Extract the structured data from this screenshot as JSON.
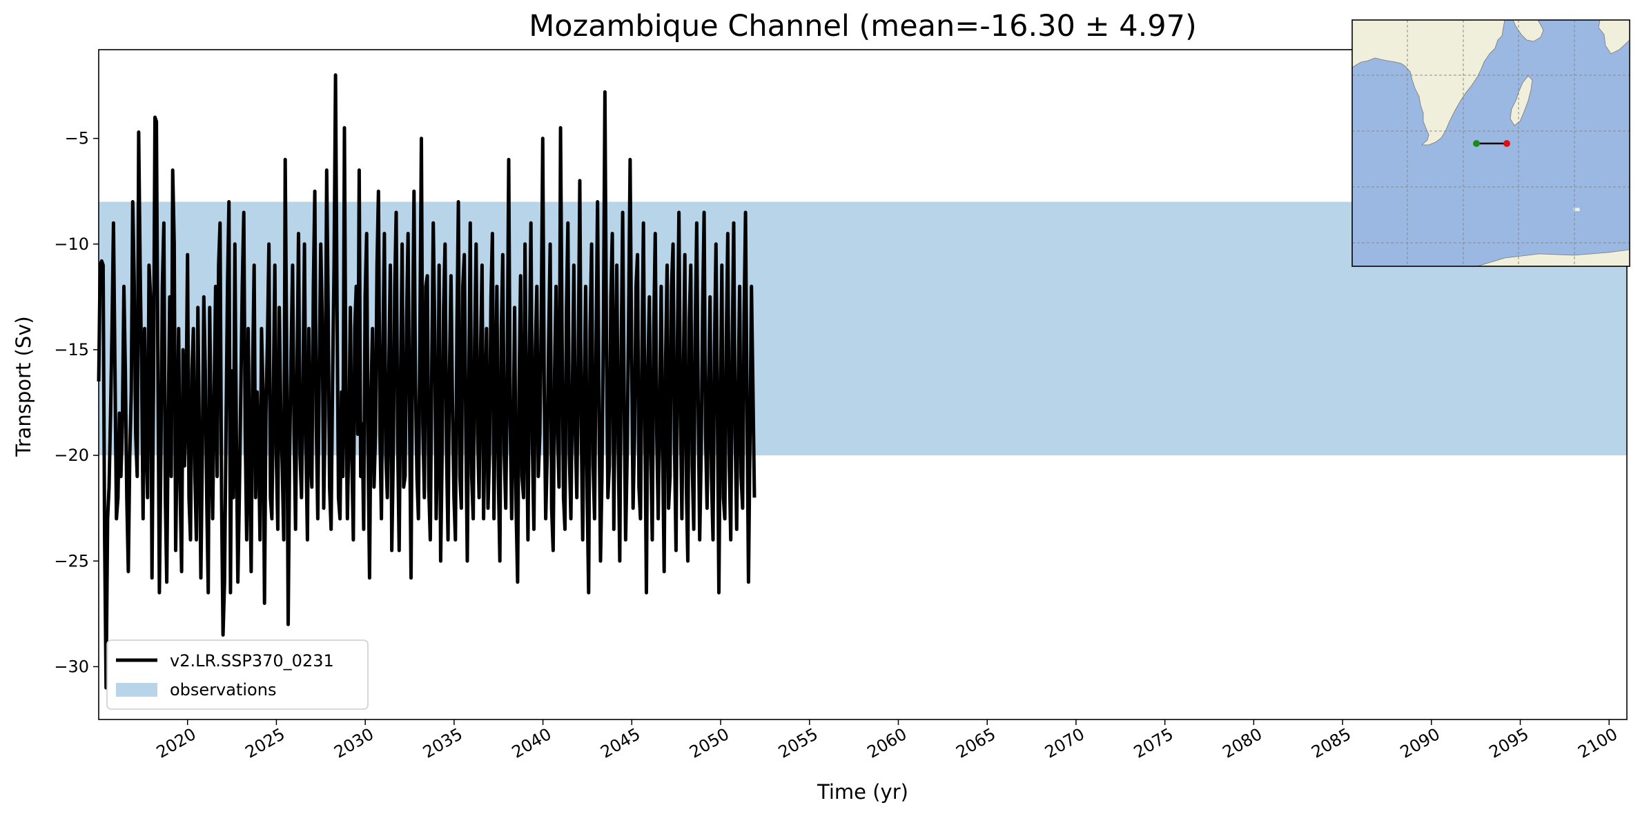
{
  "chart_data": {
    "type": "line",
    "title": "Mozambique Channel (mean=-16.30 ± 4.97)",
    "xlabel": "Time (yr)",
    "ylabel": "Transport (Sv)",
    "xlim": [
      2015,
      2101
    ],
    "ylim": [
      -32.5,
      -0.8
    ],
    "x_ticks": [
      2020,
      2025,
      2030,
      2035,
      2040,
      2045,
      2050,
      2055,
      2060,
      2065,
      2070,
      2075,
      2080,
      2085,
      2090,
      2095,
      2100
    ],
    "y_ticks": [
      -5,
      -10,
      -15,
      -20,
      -25,
      -30
    ],
    "grid": false,
    "legend_position": "lower-left",
    "observation_band": {
      "name": "observations",
      "y_min": -20.0,
      "y_max": -8.0,
      "color": "#b8d4e8"
    },
    "series": [
      {
        "name": "v2.LR.SSP370_0231",
        "color": "#000000",
        "x_start": 2015.0,
        "x_step": 0.0833,
        "values": [
          -16.5,
          -11.0,
          -10.8,
          -11.0,
          -24.0,
          -31.0,
          -23.0,
          -21.5,
          -18.0,
          -14.0,
          -9.0,
          -16.0,
          -23.0,
          -22.0,
          -18.0,
          -21.0,
          -18.5,
          -12.0,
          -16.0,
          -22.0,
          -25.5,
          -20.0,
          -17.0,
          -8.0,
          -12.0,
          -19.0,
          -21.0,
          -4.7,
          -11.0,
          -16.0,
          -23.0,
          -14.0,
          -19.0,
          -22.0,
          -11.0,
          -12.5,
          -25.8,
          -17.0,
          -4.0,
          -4.2,
          -16.0,
          -26.5,
          -20.0,
          -12.0,
          -9.0,
          -22.0,
          -26.0,
          -18.0,
          -12.5,
          -21.0,
          -6.5,
          -10.0,
          -24.5,
          -19.0,
          -14.0,
          -21.5,
          -25.5,
          -15.0,
          -20.5,
          -18.0,
          -10.5,
          -22.0,
          -24.0,
          -16.0,
          -14.0,
          -21.0,
          -24.0,
          -13.0,
          -19.0,
          -25.8,
          -20.0,
          -12.5,
          -16.0,
          -22.0,
          -26.5,
          -13.0,
          -19.5,
          -23.0,
          -17.0,
          -12.0,
          -21.0,
          -11.0,
          -9.0,
          -22.0,
          -28.5,
          -26.0,
          -19.0,
          -12.0,
          -8.0,
          -26.5,
          -16.0,
          -22.0,
          -10.0,
          -19.0,
          -26.0,
          -22.0,
          -17.0,
          -12.0,
          -8.5,
          -19.0,
          -24.0,
          -14.0,
          -20.5,
          -25.5,
          -16.0,
          -11.0,
          -22.0,
          -17.0,
          -19.5,
          -24.0,
          -14.0,
          -17.0,
          -27.0,
          -18.0,
          -14.5,
          -10.0,
          -22.0,
          -23.0,
          -17.0,
          -11.0,
          -20.0,
          -23.5,
          -13.0,
          -18.0,
          -20.5,
          -24.0,
          -6.0,
          -15.5,
          -28.0,
          -20.0,
          -15.0,
          -11.0,
          -19.0,
          -23.5,
          -16.0,
          -9.5,
          -20.0,
          -22.0,
          -17.0,
          -10.0,
          -19.5,
          -24.0,
          -14.0,
          -20.0,
          -21.5,
          -12.0,
          -7.5,
          -18.5,
          -23.0,
          -16.0,
          -10.0,
          -13.5,
          -22.5,
          -18.0,
          -6.5,
          -13.0,
          -21.5,
          -23.5,
          -16.5,
          -11.0,
          -2.0,
          -13.0,
          -22.0,
          -23.0,
          -17.0,
          -21.0,
          -4.5,
          -17.0,
          -23.0,
          -19.0,
          -13.0,
          -20.0,
          -24.0,
          -14.0,
          -12.0,
          -19.0,
          -6.5,
          -21.0,
          -18.5,
          -23.5,
          -12.5,
          -9.5,
          -20.0,
          -25.8,
          -17.0,
          -14.0,
          -21.5,
          -19.0,
          -11.0,
          -7.5,
          -19.0,
          -23.0,
          -15.0,
          -9.5,
          -20.0,
          -22.0,
          -16.0,
          -11.0,
          -24.5,
          -20.0,
          -12.0,
          -8.5,
          -19.5,
          -24.5,
          -16.0,
          -10.0,
          -21.5,
          -21.0,
          -13.5,
          -9.5,
          -18.0,
          -25.8,
          -15.0,
          -7.5,
          -16.5,
          -21.0,
          -23.0,
          -14.0,
          -5.0,
          -18.5,
          -22.0,
          -12.0,
          -11.5,
          -21.5,
          -24.0,
          -16.0,
          -9.0,
          -14.0,
          -23.0,
          -19.5,
          -11.0,
          -25.0,
          -20.0,
          -13.0,
          -10.0,
          -20.0,
          -24.0,
          -16.0,
          -11.5,
          -17.5,
          -22.0,
          -24.0,
          -14.0,
          -8.0,
          -21.0,
          -22.5,
          -12.0,
          -10.5,
          -18.5,
          -25.0,
          -17.0,
          -9.0,
          -21.0,
          -23.0,
          -14.5,
          -10.0,
          -19.0,
          -22.0,
          -15.0,
          -11.0,
          -23.0,
          -18.0,
          -14.0,
          -22.5,
          -20.0,
          -12.5,
          -9.5,
          -23.0,
          -17.0,
          -12.0,
          -21.0,
          -25.0,
          -14.0,
          -10.5,
          -20.0,
          -22.5,
          -16.0,
          -6.0,
          -18.5,
          -23.0,
          -19.0,
          -13.0,
          -22.5,
          -26.0,
          -17.0,
          -11.5,
          -21.0,
          -22.0,
          -10.0,
          -18.0,
          -24.0,
          -15.5,
          -9.0,
          -19.5,
          -23.5,
          -15.0,
          -12.0,
          -21.0,
          -19.0,
          -13.5,
          -5.0,
          -17.0,
          -23.0,
          -20.0,
          -14.5,
          -10.0,
          -22.5,
          -24.5,
          -16.0,
          -12.0,
          -19.0,
          -21.5,
          -4.5,
          -14.0,
          -22.0,
          -23.5,
          -13.0,
          -9.0,
          -20.0,
          -23.0,
          -17.0,
          -11.0,
          -19.0,
          -22.0,
          -15.5,
          -7.0,
          -18.5,
          -24.0,
          -17.0,
          -12.0,
          -22.0,
          -26.5,
          -14.0,
          -10.0,
          -20.5,
          -23.0,
          -15.0,
          -8.0,
          -17.5,
          -25.0,
          -21.0,
          -13.5,
          -2.8,
          -14.5,
          -22.0,
          -20.5,
          -12.5,
          -9.5,
          -23.5,
          -16.0,
          -11.0,
          -19.5,
          -25.0,
          -15.0,
          -8.5,
          -17.5,
          -24.0,
          -20.0,
          -13.5,
          -6.0,
          -15.0,
          -22.5,
          -19.0,
          -12.0,
          -10.5,
          -21.5,
          -23.0,
          -15.5,
          -9.0,
          -18.5,
          -26.5,
          -16.0,
          -12.5,
          -20.0,
          -24.0,
          -14.0,
          -9.5,
          -19.0,
          -23.0,
          -17.5,
          -12.0,
          -20.0,
          -25.5,
          -15.5,
          -11.0,
          -22.5,
          -21.0,
          -12.0,
          -10.0,
          -19.5,
          -24.5,
          -14.5,
          -8.5,
          -18.0,
          -23.0,
          -16.0,
          -10.5,
          -21.5,
          -25.0,
          -13.5,
          -11.0,
          -20.5,
          -23.5,
          -14.0,
          -9.0,
          -17.5,
          -24.0,
          -20.0,
          -13.0,
          -8.5,
          -19.0,
          -22.5,
          -17.0,
          -12.5,
          -21.0,
          -24.0,
          -15.0,
          -10.0,
          -18.0,
          -26.5,
          -17.5,
          -11.0,
          -22.0,
          -23.0,
          -14.5,
          -9.5,
          -20.5,
          -24.0,
          -15.0,
          -9.0,
          -19.0,
          -23.5,
          -17.0,
          -12.0,
          -21.0,
          -22.5,
          -13.5,
          -8.5,
          -18.0,
          -26.0,
          -19.0,
          -12.0,
          -17.0,
          -22.0
        ]
      }
    ]
  },
  "inset_map": {
    "description_colors": {
      "land": "#efefdb",
      "ocean": "#9ab8e2",
      "section_line": "#000000",
      "start_point": "#1a8a1a",
      "end_point": "#e01010"
    }
  }
}
